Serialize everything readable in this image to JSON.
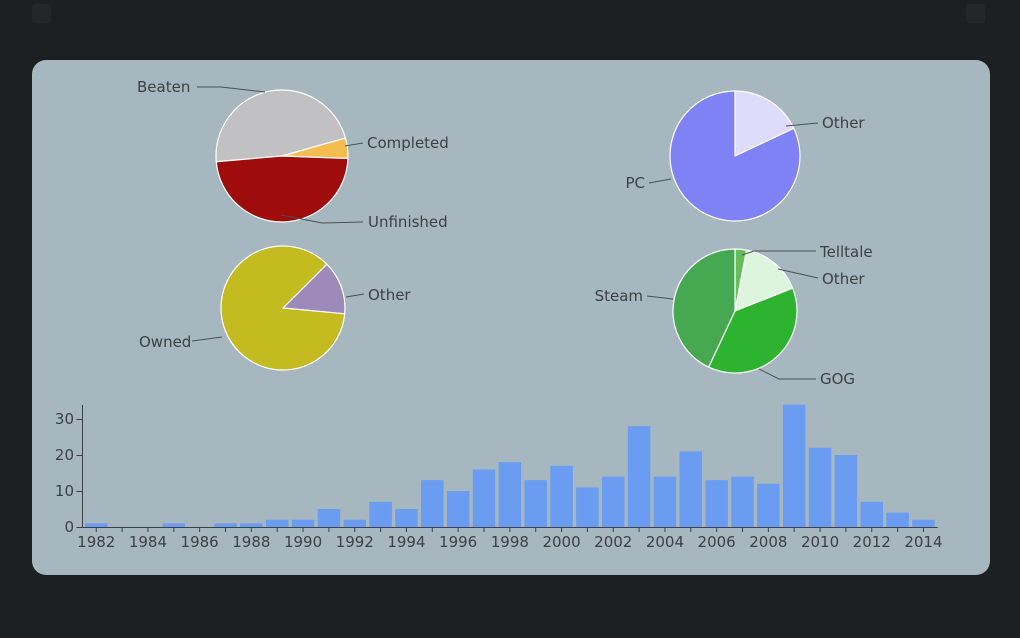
{
  "page": {
    "background": "#1d2022"
  },
  "panel": {
    "background": "#a6b7bf"
  },
  "style": {
    "label_color": "#3c4145",
    "axis_color": "#3c4145",
    "callout_color": "#4a5054",
    "slice_edge_color": "#ffffff"
  },
  "chart_data": [
    {
      "id": "completion-pie",
      "type": "pie",
      "legend_position": "callout",
      "start_angle": -95,
      "slices": [
        {
          "label": "Beaten",
          "pct": 47,
          "color": "#c1c1c3"
        },
        {
          "label": "Completed",
          "pct": 5,
          "color": "#f5bd4f"
        },
        {
          "label": "Unfinished",
          "pct": 48,
          "color": "#9e0c0c"
        }
      ]
    },
    {
      "id": "platform-pie",
      "type": "pie",
      "legend_position": "callout",
      "start_angle": 0,
      "slices": [
        {
          "label": "Other",
          "pct": 18,
          "color": "#dedcfa"
        },
        {
          "label": "PC",
          "pct": 82,
          "color": "#7f82f5"
        }
      ]
    },
    {
      "id": "ownership-pie",
      "type": "pie",
      "legend_position": "callout",
      "start_angle": 45,
      "slices": [
        {
          "label": "Other",
          "pct": 14,
          "color": "#9d89ba"
        },
        {
          "label": "Owned",
          "pct": 86,
          "color": "#c3bb20"
        }
      ]
    },
    {
      "id": "store-pie",
      "type": "pie",
      "legend_position": "callout",
      "start_angle": 0,
      "slices": [
        {
          "label": "Telltale",
          "pct": 3,
          "color": "#66bd5c"
        },
        {
          "label": "Other",
          "pct": 16,
          "color": "#dcf5dc"
        },
        {
          "label": "GOG",
          "pct": 38,
          "color": "#2db32f"
        },
        {
          "label": "Steam",
          "pct": 43,
          "color": "#46a952"
        }
      ]
    },
    {
      "id": "games-per-year",
      "type": "bar",
      "bar_color": "#6a9cf2",
      "categories": [
        1982,
        1983,
        1984,
        1985,
        1986,
        1987,
        1988,
        1989,
        1990,
        1991,
        1992,
        1993,
        1994,
        1995,
        1996,
        1997,
        1998,
        1999,
        2000,
        2001,
        2002,
        2003,
        2004,
        2005,
        2006,
        2007,
        2008,
        2009,
        2010,
        2011,
        2012,
        2013,
        2014
      ],
      "values": [
        1,
        0,
        0,
        1,
        0,
        1,
        1,
        2,
        2,
        5,
        2,
        7,
        5,
        13,
        10,
        16,
        18,
        13,
        17,
        11,
        14,
        28,
        14,
        21,
        13,
        14,
        12,
        34,
        22,
        20,
        7,
        4,
        2
      ],
      "yticks": [
        0,
        10,
        20,
        30
      ],
      "ylim": [
        0,
        35
      ],
      "xtick_label_step": 2,
      "grid": false
    }
  ]
}
